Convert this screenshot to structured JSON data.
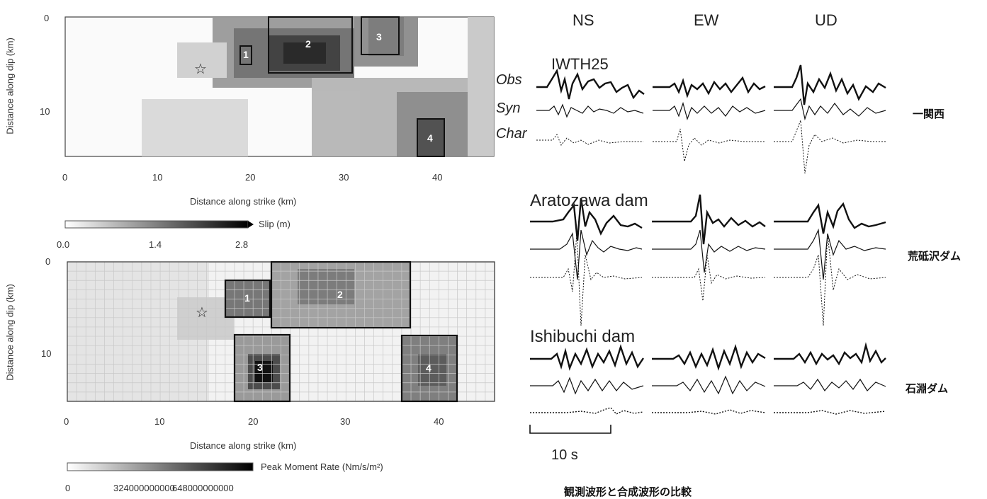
{
  "top_map": {
    "ylabel": "Distance along dip (km)",
    "xlabel": "Distance along strike (km)",
    "x_ticks": [
      "0",
      "10",
      "20",
      "30",
      "40"
    ],
    "y_ticks": [
      "0",
      "10"
    ],
    "asperities": [
      "1",
      "2",
      "3",
      "4"
    ],
    "colorbar_label": "Slip (m)",
    "colorbar_ticks": [
      "0.0",
      "1.4",
      "2.8"
    ]
  },
  "bottom_map": {
    "ylabel": "Distance along dip (km)",
    "xlabel": "Distance along strike (km)",
    "x_ticks": [
      "0",
      "10",
      "20",
      "30",
      "40"
    ],
    "y_ticks": [
      "0",
      "10"
    ],
    "asperities": [
      "1",
      "2",
      "3",
      "4"
    ],
    "colorbar_label": "Peak Moment Rate (Nm/s/m²)",
    "colorbar_ticks": [
      "0",
      "324000000000",
      "648000000000"
    ]
  },
  "waveforms": {
    "components": [
      "NS",
      "EW",
      "UD"
    ],
    "trace_labels": [
      "Obs",
      "Syn",
      "Char"
    ],
    "stations": [
      {
        "name": "IWTH25",
        "jp": "一関西"
      },
      {
        "name": "Aratozawa dam",
        "jp": "荒砥沢ダム"
      },
      {
        "name": "Ishibuchi dam",
        "jp": "石淵ダム"
      }
    ],
    "scale_label": "10 s",
    "caption": "観測波形と合成波形の比較"
  },
  "colors": {
    "asperity_border": "#111111",
    "grid": "#cfcfcf",
    "background": "#ffffff"
  }
}
